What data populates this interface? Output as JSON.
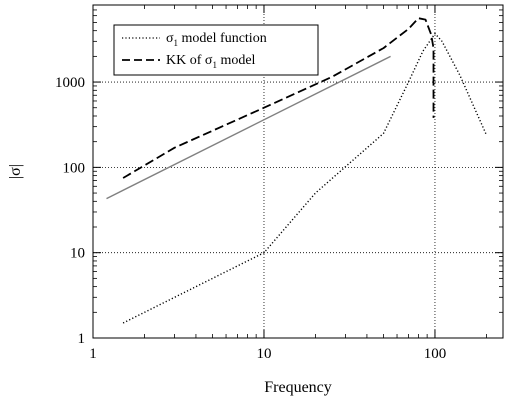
{
  "chart_data": {
    "type": "line",
    "title": "",
    "xlabel": "Frequency",
    "ylabel": "|σ|",
    "xscale": "log",
    "yscale": "log",
    "xlim": [
      1,
      250
    ],
    "ylim": [
      1,
      8000
    ],
    "grid": true,
    "legend_position": "top-left",
    "x_ticks": [
      1,
      10,
      100
    ],
    "x_tick_labels": [
      "1",
      "10",
      "100"
    ],
    "y_ticks": [
      1,
      10,
      100,
      1000
    ],
    "y_tick_labels": [
      "1",
      "10",
      "100",
      "1000"
    ],
    "series": [
      {
        "name": "σ1 model function",
        "legend_main": "σ",
        "legend_sub": "1",
        "legend_rest": " model function",
        "style": "dotted",
        "color": "#000000",
        "x": [
          1.5,
          10,
          20,
          50,
          70,
          85,
          100,
          110,
          140,
          200
        ],
        "y": [
          1.5,
          10,
          50,
          250,
          1000,
          2300,
          3700,
          3000,
          1200,
          240
        ]
      },
      {
        "name": "KK of σ1 model",
        "legend_main": "KK of σ",
        "legend_sub": "1",
        "legend_rest": " model",
        "style": "dashed",
        "color": "#000000",
        "x": [
          1.5,
          3,
          10,
          25,
          50,
          70,
          80,
          88,
          95,
          98,
          98
        ],
        "y": [
          75,
          170,
          500,
          1150,
          2500,
          4200,
          5600,
          5400,
          3600,
          2500,
          380
        ]
      },
      {
        "name": "",
        "style": "solid",
        "color": "#808080",
        "x": [
          1.2,
          55
        ],
        "y": [
          43,
          2000
        ]
      }
    ]
  }
}
